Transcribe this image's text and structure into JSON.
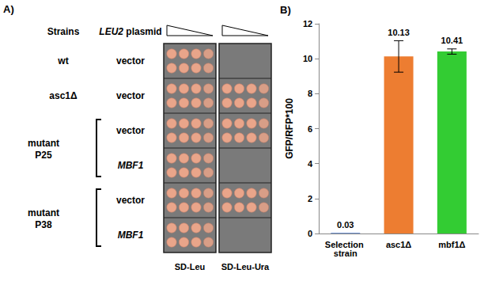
{
  "panel_a": {
    "label": "A)",
    "header": {
      "strains": "Strains",
      "plasmid": "LEU2 plasmid"
    },
    "media": [
      "SD-Leu",
      "SD-Leu-Ura"
    ],
    "groups": [
      {
        "strain": "wt",
        "rows": [
          {
            "plasmid": "vector",
            "growth": [
              true,
              false
            ]
          }
        ]
      },
      {
        "strain": "asc1Δ",
        "rows": [
          {
            "plasmid": "vector",
            "growth": [
              true,
              true
            ]
          }
        ]
      },
      {
        "strain": "mutant P25",
        "rows": [
          {
            "plasmid": "vector",
            "growth": [
              true,
              true
            ]
          },
          {
            "plasmid": "MBF1",
            "growth": [
              true,
              false
            ]
          }
        ]
      },
      {
        "strain": "mutant P38",
        "rows": [
          {
            "plasmid": "vector",
            "growth": [
              true,
              true
            ]
          },
          {
            "plasmid": "MBF1",
            "growth": [
              true,
              false
            ]
          }
        ]
      }
    ]
  },
  "chart_data": {
    "type": "bar",
    "panel_label": "B)",
    "y_label": "GFP/RFP*100",
    "categories": [
      "Selection strain",
      "asc1Δ",
      "mbf1Δ"
    ],
    "values": [
      0.03,
      10.13,
      10.41
    ],
    "errors": [
      0,
      0.9,
      0.15
    ],
    "colors": [
      "#4472c4",
      "#ed7d31",
      "#33cc33"
    ],
    "ylim": [
      0,
      12
    ],
    "yticks": [
      0,
      2,
      4,
      6,
      8,
      10,
      12
    ],
    "grid": false,
    "data_labels": true
  }
}
